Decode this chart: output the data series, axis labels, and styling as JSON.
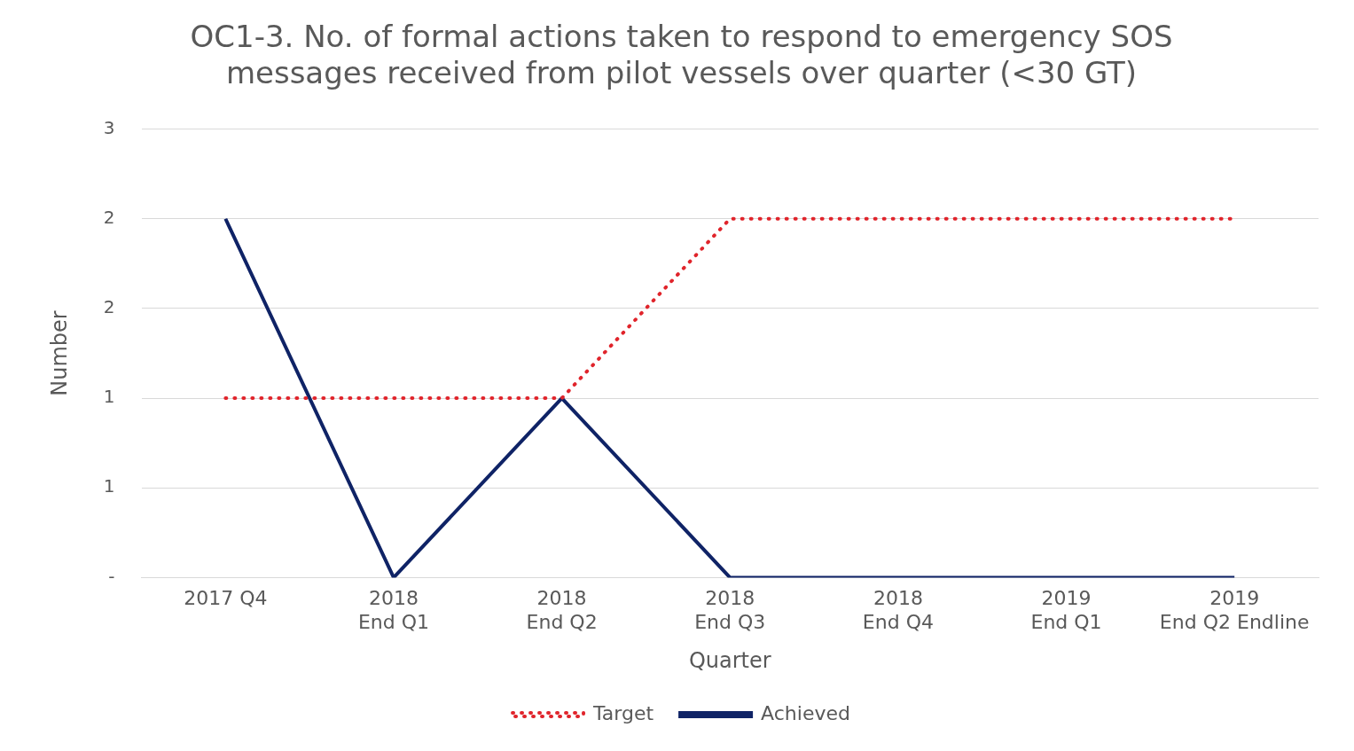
{
  "chart_data": {
    "type": "line",
    "title": [
      "OC1-3. No. of formal actions taken to respond to emergency SOS",
      "messages received from pilot vessels over quarter (<30 GT)"
    ],
    "xlabel": "Quarter",
    "ylabel": "Number",
    "categories": [
      [
        "2017 Q4"
      ],
      [
        "2018",
        "End Q1"
      ],
      [
        "2018",
        "End Q2"
      ],
      [
        "2018",
        "End Q3"
      ],
      [
        "2018",
        "End Q4"
      ],
      [
        "2019",
        "End Q1"
      ],
      [
        "2019",
        "End Q2 Endline"
      ]
    ],
    "series": [
      {
        "name": "Target",
        "color": "#e0242b",
        "line_style": "dotted",
        "values": [
          1,
          1,
          1,
          2,
          2,
          2,
          2
        ]
      },
      {
        "name": "Achieved",
        "color": "#0f2366",
        "line_style": "solid",
        "values": [
          2,
          0,
          1,
          0,
          0,
          0,
          0
        ]
      }
    ],
    "ylim": [
      0,
      2.5
    ],
    "yticks": [
      {
        "value": 0,
        "label": "-"
      },
      {
        "value": 0.5,
        "label": "1"
      },
      {
        "value": 1,
        "label": "1"
      },
      {
        "value": 1.5,
        "label": "2"
      },
      {
        "value": 2,
        "label": "2"
      },
      {
        "value": 2.5,
        "label": "3"
      }
    ],
    "grid": "y",
    "legend": "bottom",
    "marker": "none"
  }
}
